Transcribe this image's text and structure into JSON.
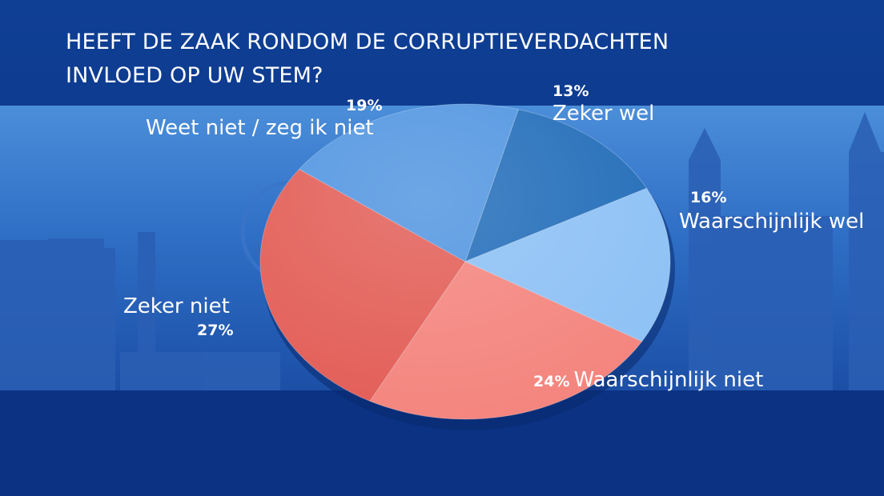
{
  "title_lines": [
    "HEEFT DE ZAAK RONDOM DE CORRUPTIEVERDACHTEN",
    "INVLOED OP UW STEM?"
  ],
  "chart_data": {
    "type": "pie",
    "title": "HEEFT DE ZAAK RONDOM DE CORRUPTIEVERDACHTEN INVLOED OP UW STEM?",
    "legend": "none",
    "slices": [
      {
        "label": "Zeker wel",
        "value": 13,
        "display": "13%",
        "color": "#1f6bb8"
      },
      {
        "label": "Waarschijnlijk wel",
        "value": 16,
        "display": "16%",
        "color": "#8cc0f5"
      },
      {
        "label": "Waarschijnlijk niet",
        "value": 24,
        "display": "24%",
        "color": "#f4837c"
      },
      {
        "label": "Zeker niet",
        "value": 27,
        "display": "27%",
        "color": "#e25b54"
      },
      {
        "label": "Weet niet / zeg ik niet",
        "value": 19,
        "display": "19%",
        "color": "#4e93e0"
      }
    ]
  }
}
